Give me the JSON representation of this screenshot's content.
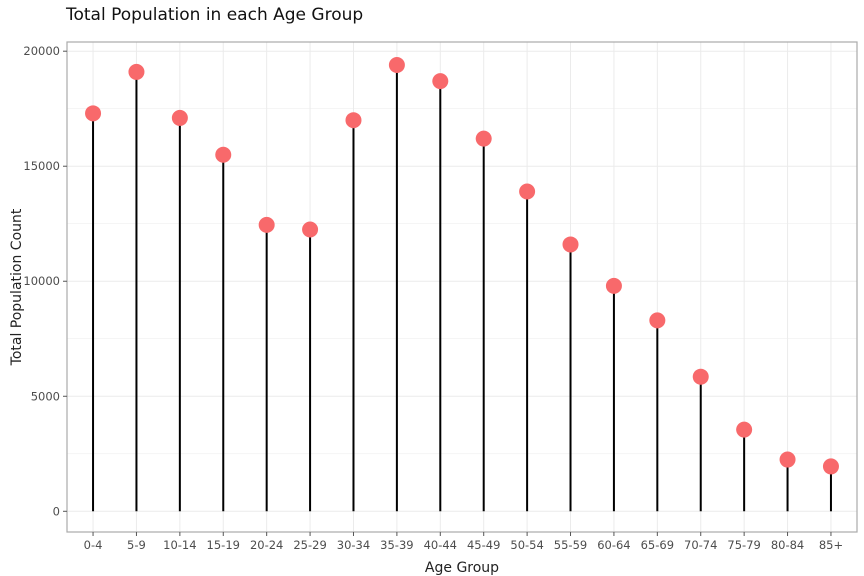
{
  "chart_data": {
    "type": "lollipop",
    "title": "Total Population in each Age Group",
    "xlabel": "Age Group",
    "ylabel": "Total Population Count",
    "categories": [
      "0-4",
      "5-9",
      "10-14",
      "15-19",
      "20-24",
      "25-29",
      "30-34",
      "35-39",
      "40-44",
      "45-49",
      "50-54",
      "55-59",
      "60-64",
      "65-69",
      "70-74",
      "75-79",
      "80-84",
      "85+"
    ],
    "values": [
      17300,
      19100,
      17100,
      15500,
      12450,
      12250,
      17000,
      19400,
      18700,
      16200,
      13900,
      11600,
      9800,
      8300,
      5850,
      3550,
      2250,
      1950
    ],
    "ylim": [
      -900,
      20400
    ],
    "yticks": [
      0,
      5000,
      10000,
      15000,
      20000
    ],
    "grid": true,
    "legend": "none",
    "colors": {
      "point": "#f8696b",
      "stem": "#000000",
      "panel_border": "#aaaaaa",
      "grid": "#ebebeb"
    }
  }
}
